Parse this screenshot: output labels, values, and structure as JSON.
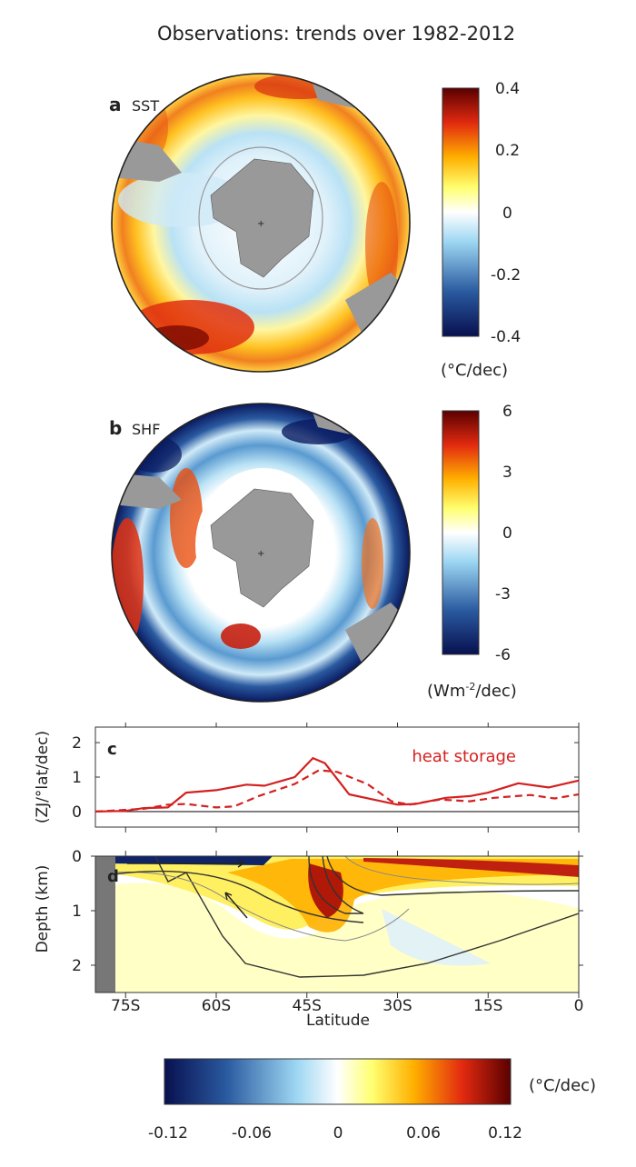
{
  "title": "Observations: trends over 1982-2012",
  "colormap": [
    "#08104f",
    "#2a5aa0",
    "#9cd6f2",
    "#ffffff",
    "#ffff70",
    "#ffb000",
    "#e22a10",
    "#5a0000"
  ],
  "panel_a": {
    "letter": "a",
    "variable": "SST",
    "colorbar": {
      "ticks": [
        "0.4",
        "0.2",
        "0",
        "-0.2",
        "-0.4"
      ],
      "range": [
        -0.4,
        0.4
      ],
      "unit": "(°C/dec)"
    }
  },
  "panel_b": {
    "letter": "b",
    "variable": "SHF",
    "colorbar": {
      "ticks": [
        "6",
        "3",
        "0",
        "-3",
        "-6"
      ],
      "range": [
        -6,
        6
      ],
      "unit_main": "(Wm",
      "unit_sup": "-2",
      "unit_tail": "/dec)"
    }
  },
  "bottom_colorbar": {
    "ticks": [
      "-0.12",
      "-0.06",
      "0",
      "0.06",
      "0.12"
    ],
    "range": [
      -0.12,
      0.12
    ],
    "unit": "(°C/dec)"
  },
  "chart_data": [
    {
      "type": "line",
      "panel": "c",
      "ylabel": "(ZJ/°lat/dec)",
      "annotation": "heat storage",
      "xlim": [
        -80,
        0
      ],
      "ylim": [
        -0.45,
        2.45
      ],
      "yticks": [
        "0",
        "1",
        "2"
      ],
      "color": "#d42020",
      "series": [
        {
          "style": "solid",
          "x": [
            -80,
            -75,
            -72,
            -68,
            -65,
            -60,
            -55,
            -52,
            -49,
            -47,
            -44,
            -42,
            -38,
            -34,
            -30,
            -27,
            -22,
            -18,
            -15,
            -10,
            -5,
            0
          ],
          "y": [
            0,
            0.02,
            0.1,
            0.12,
            0.55,
            0.62,
            0.78,
            0.75,
            0.9,
            1.0,
            1.55,
            1.4,
            0.5,
            0.35,
            0.2,
            0.22,
            0.4,
            0.45,
            0.55,
            0.82,
            0.7,
            0.9
          ]
        },
        {
          "style": "dashed",
          "x": [
            -80,
            -72,
            -68,
            -65,
            -60,
            -57,
            -53,
            -47,
            -43,
            -40,
            -35,
            -31,
            -28,
            -23,
            -18,
            -14,
            -8,
            -4,
            0
          ],
          "y": [
            0,
            0.08,
            0.2,
            0.22,
            0.12,
            0.15,
            0.45,
            0.8,
            1.2,
            1.15,
            0.8,
            0.3,
            0.2,
            0.35,
            0.3,
            0.4,
            0.48,
            0.38,
            0.5
          ]
        }
      ]
    },
    {
      "type": "heatmap",
      "panel": "d",
      "letter": "d",
      "xlabel": "Latitude",
      "ylabel": "Depth (km)",
      "xlim": [
        -80,
        0
      ],
      "ylim": [
        2.5,
        0
      ],
      "xticks": [
        "75S",
        "60S",
        "45S",
        "30S",
        "15S",
        "0"
      ],
      "xtick_values": [
        -75,
        -60,
        -45,
        -30,
        -15,
        0
      ],
      "yticks": [
        "0",
        "1",
        "2"
      ],
      "ytick_values": [
        0,
        1,
        2
      ]
    }
  ]
}
